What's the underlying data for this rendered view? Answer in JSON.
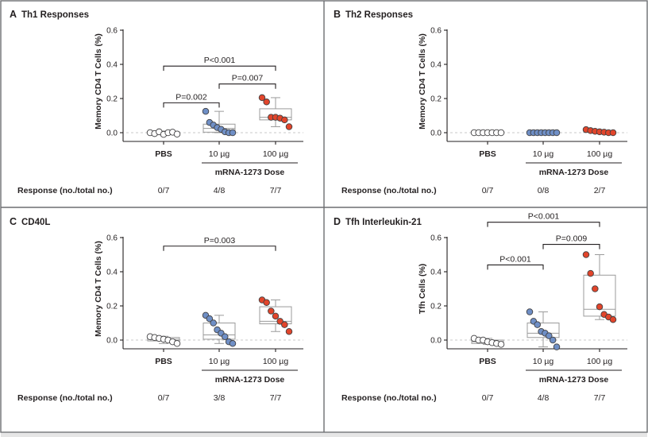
{
  "colors": {
    "PBS": "#ffffff",
    "10ug": "#6f8fc6",
    "100ug": "#e2452b"
  },
  "response_label": "Response (no./total no.)",
  "dose_label": "mRNA-1273 Dose",
  "chart_data": [
    {
      "type": "box-scatter",
      "panel": "A",
      "title": "Th1 Responses",
      "ylabel": "Memory CD4 T Cells (%)",
      "ylim": [
        0,
        0.6
      ],
      "yticks": [
        "0.0",
        "0.2",
        "0.4",
        "0.6"
      ],
      "categories": [
        "PBS",
        "10 µg",
        "100 µg"
      ],
      "series": [
        {
          "name": "PBS",
          "values": [
            0.0,
            -0.005,
            0.005,
            -0.01,
            0.0,
            0.003,
            -0.008
          ],
          "box": [
            -0.012,
            -0.008,
            0.0,
            0.005,
            0.01
          ]
        },
        {
          "name": "10 µg",
          "values": [
            0.125,
            0.06,
            0.045,
            0.03,
            0.02,
            0.005,
            0.0,
            0.0
          ],
          "box": [
            0.0,
            0.003,
            0.025,
            0.05,
            0.125
          ]
        },
        {
          "name": "100 µg",
          "values": [
            0.205,
            0.18,
            0.09,
            0.09,
            0.085,
            0.075,
            0.035
          ],
          "box": [
            0.035,
            0.075,
            0.09,
            0.14,
            0.205
          ]
        }
      ],
      "comparisons": [
        {
          "text": "P=0.002",
          "from": 0,
          "to": 1,
          "y": 0.175
        },
        {
          "text": "P=0.007",
          "from": 1,
          "to": 2,
          "y": 0.285
        },
        {
          "text": "P<0.001",
          "from": 0,
          "to": 2,
          "y": 0.39
        }
      ],
      "response": [
        "0/7",
        "4/8",
        "7/7"
      ]
    },
    {
      "type": "box-scatter",
      "panel": "B",
      "title": "Th2 Responses",
      "ylabel": "Memory CD4 T Cells (%)",
      "ylim": [
        0,
        0.6
      ],
      "yticks": [
        "0.0",
        "0.2",
        "0.4",
        "0.6"
      ],
      "categories": [
        "PBS",
        "10 µg",
        "100 µg"
      ],
      "series": [
        {
          "name": "PBS",
          "values": [
            0.0,
            0.0,
            0.0,
            0.0,
            0.0,
            0.0,
            0.0
          ],
          "box": [
            -0.003,
            -0.002,
            0.0,
            0.002,
            0.003
          ]
        },
        {
          "name": "10 µg",
          "values": [
            0.0,
            0.0,
            0.0,
            0.0,
            0.0,
            0.0,
            0.0,
            0.0
          ],
          "box": [
            -0.003,
            -0.002,
            0.0,
            0.002,
            0.003
          ]
        },
        {
          "name": "100 µg",
          "values": [
            0.018,
            0.012,
            0.008,
            0.005,
            0.003,
            0.0,
            0.0
          ],
          "box": [
            0.0,
            0.002,
            0.005,
            0.01,
            0.018
          ]
        }
      ],
      "comparisons": [],
      "response": [
        "0/7",
        "0/8",
        "2/7"
      ]
    },
    {
      "type": "box-scatter",
      "panel": "C",
      "title": "CD40L",
      "ylabel": "Memory CD4 T Cells (%)",
      "ylim": [
        0,
        0.6
      ],
      "yticks": [
        "0.0",
        "0.2",
        "0.4",
        "0.6"
      ],
      "categories": [
        "PBS",
        "10 µg",
        "100 µg"
      ],
      "series": [
        {
          "name": "PBS",
          "values": [
            0.02,
            0.015,
            0.01,
            0.005,
            0.0,
            -0.01,
            -0.02
          ],
          "box": [
            -0.02,
            -0.005,
            0.005,
            0.015,
            0.022
          ]
        },
        {
          "name": "10 µg",
          "values": [
            0.145,
            0.125,
            0.1,
            0.06,
            0.04,
            0.02,
            -0.01,
            -0.02
          ],
          "box": [
            -0.02,
            0.005,
            0.03,
            0.1,
            0.145
          ]
        },
        {
          "name": "100 µg",
          "values": [
            0.235,
            0.22,
            0.17,
            0.14,
            0.11,
            0.09,
            0.05
          ],
          "box": [
            0.05,
            0.095,
            0.11,
            0.195,
            0.235
          ]
        }
      ],
      "comparisons": [
        {
          "text": "P=0.003",
          "from": 0,
          "to": 2,
          "y": 0.55
        }
      ],
      "response": [
        "0/7",
        "3/8",
        "7/7"
      ]
    },
    {
      "type": "box-scatter",
      "panel": "D",
      "title": "Tfh Interleukin-21",
      "ylabel": "Tfh Cells (%)",
      "ylim": [
        0,
        0.6
      ],
      "yticks": [
        "0.0",
        "0.2",
        "0.4",
        "0.6"
      ],
      "categories": [
        "PBS",
        "10 µg",
        "100 µg"
      ],
      "series": [
        {
          "name": "PBS",
          "values": [
            0.01,
            0.0,
            0.0,
            -0.01,
            -0.015,
            -0.02,
            -0.025
          ],
          "box": [
            -0.025,
            -0.02,
            -0.01,
            0.0,
            0.01
          ]
        },
        {
          "name": "10 µg",
          "values": [
            0.165,
            0.11,
            0.09,
            0.05,
            0.04,
            0.025,
            0.0,
            -0.04
          ],
          "box": [
            -0.04,
            0.015,
            0.04,
            0.1,
            0.165
          ]
        },
        {
          "name": "100 µg",
          "values": [
            0.5,
            0.39,
            0.3,
            0.195,
            0.15,
            0.135,
            0.12
          ],
          "box": [
            0.12,
            0.14,
            0.18,
            0.38,
            0.5
          ]
        }
      ],
      "comparisons": [
        {
          "text": "P<0.001",
          "from": 0,
          "to": 1,
          "y": 0.44
        },
        {
          "text": "P=0.009",
          "from": 1,
          "to": 2,
          "y": 0.56
        },
        {
          "text": "P<0.001",
          "from": 0,
          "to": 2,
          "y": 0.69
        }
      ],
      "response": [
        "0/7",
        "4/8",
        "7/7"
      ]
    }
  ]
}
